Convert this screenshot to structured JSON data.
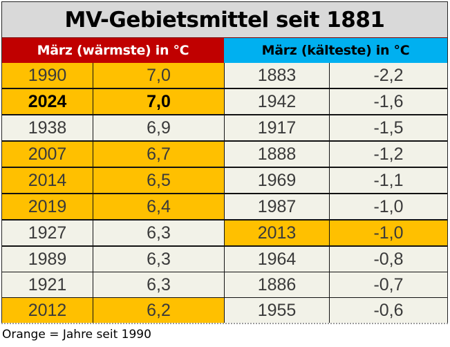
{
  "title": "MV-Gebietsmittel seit 1881",
  "headers": {
    "warmest": "März (wärmste) in °C",
    "coldest": "März (kälteste) in °C"
  },
  "rows": [
    {
      "warm_year": "1990",
      "warm_value": "7,0",
      "warm_highlight": true,
      "warm_bold": false,
      "cold_year": "1883",
      "cold_value": "-2,2",
      "cold_highlight": false
    },
    {
      "warm_year": "2024",
      "warm_value": "7,0",
      "warm_highlight": true,
      "warm_bold": true,
      "cold_year": "1942",
      "cold_value": "-1,6",
      "cold_highlight": false
    },
    {
      "warm_year": "1938",
      "warm_value": "6,9",
      "warm_highlight": false,
      "warm_bold": false,
      "cold_year": "1917",
      "cold_value": "-1,5",
      "cold_highlight": false
    },
    {
      "warm_year": "2007",
      "warm_value": "6,7",
      "warm_highlight": true,
      "warm_bold": false,
      "cold_year": "1888",
      "cold_value": "-1,2",
      "cold_highlight": false
    },
    {
      "warm_year": "2014",
      "warm_value": "6,5",
      "warm_highlight": true,
      "warm_bold": false,
      "cold_year": "1969",
      "cold_value": "-1,1",
      "cold_highlight": false
    },
    {
      "warm_year": "2019",
      "warm_value": "6,4",
      "warm_highlight": true,
      "warm_bold": false,
      "cold_year": "1987",
      "cold_value": "-1,0",
      "cold_highlight": false
    },
    {
      "warm_year": "1927",
      "warm_value": "6,3",
      "warm_highlight": false,
      "warm_bold": false,
      "cold_year": "2013",
      "cold_value": "-1,0",
      "cold_highlight": true
    },
    {
      "warm_year": "1989",
      "warm_value": "6,3",
      "warm_highlight": false,
      "warm_bold": false,
      "cold_year": "1964",
      "cold_value": "-0,8",
      "cold_highlight": false
    },
    {
      "warm_year": "1921",
      "warm_value": "6,3",
      "warm_highlight": false,
      "warm_bold": false,
      "cold_year": "1886",
      "cold_value": "-0,7",
      "cold_highlight": false
    },
    {
      "warm_year": "2012",
      "warm_value": "6,2",
      "warm_highlight": true,
      "warm_bold": false,
      "cold_year": "1955",
      "cold_value": "-0,6",
      "cold_highlight": false
    }
  ],
  "footer": "Orange = Jahre seit 1990",
  "colors": {
    "title_bg": "#D9D9D9",
    "warm_header_bg": "#C00000",
    "cold_header_bg": "#00B0F0",
    "highlight_orange": "#FFC000",
    "cell_bg": "#F2F2E8"
  }
}
